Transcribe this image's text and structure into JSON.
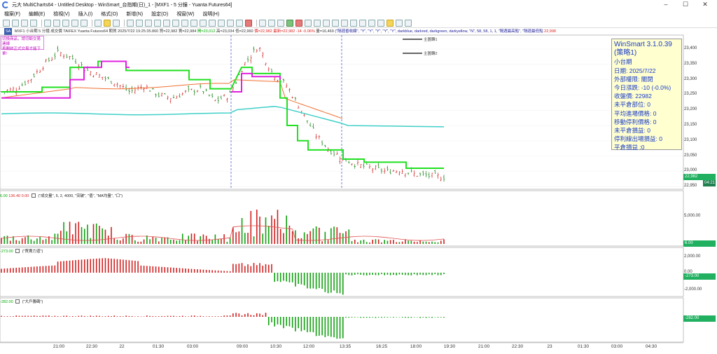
{
  "window": {
    "title": "元大 MultiCharts64 - Untitled Desktop - WinSmart_台指期(日)_1 - [MXF1 - 5 分鐘 - Yuanta Futures64]"
  },
  "menu": [
    "檔案(F)",
    "編輯(E)",
    "檢視(V)",
    "插入(I)",
    "格式(O)",
    "新增(N)",
    "設定(O)",
    "視窗(W)",
    "說明(H)"
  ],
  "infobar": {
    "badge": "SA",
    "symbol": "MXF1",
    "name": "小台期",
    "interval": "5 分鐘",
    "volume_label": "成交價",
    "exchange": "TAIFEX",
    "feed": "Yuanta Futures64",
    "period": "期貨",
    "datetime": "2025/7/22   19:25:35.860",
    "bid": "買=22,982",
    "ask": "賣=22,984",
    "open": "開=23,012",
    "high": "高=23,034",
    "low": "低=22,960",
    "last": "價=22,982",
    "close": "最新=22,982",
    "change": "-14",
    "pct": "-0.06%",
    "vol": "量=16,469",
    "indicator": "(\"隔週昏收線\", \"Y\", \"Y\", \"Y\", \"Y\", \"Y\", darkblue, darkred, darkgreen, darkyellow, \"N\", 58, 58, 1, 1, \"隔週最高點\", \"隔週最低點",
    "right_price": "22,998"
  },
  "warning": {
    "lines": [
      "切換商品，請切斷交易連線",
      "再開啟正式交易才能下單!"
    ]
  },
  "legend": [
    "主圖轉1",
    "主圖轉2"
  ],
  "infobox": {
    "title": "WinSmart 3.1.0.39",
    "strategy": "(策略1)",
    "product": "小台期",
    "date": "日期: 2025/7/22",
    "market": "外部權限: 關閉",
    "change": "今日漲跌: -10 (-0.0%)",
    "close_label": "收盤價: ",
    "close_value": "22982",
    "pos": "未平倉部位: 0",
    "avg": "平均進場價格: 0",
    "stop": "移動停利價格: 0",
    "unreal": "未平倉損益: 0",
    "stoploss": "停利線出場損益: 0",
    "realized": "平倉損益 :0"
  },
  "price_axis": [
    "23,400",
    "23,350",
    "23,300",
    "23,250",
    "23,200",
    "23,150",
    "23,100",
    "23,050",
    "23,000",
    "22,950"
  ],
  "price_tag": "22,982",
  "price_tag2": "04:21",
  "vol_panel": {
    "header_v1": "6.00",
    "header_v2": "136.40",
    "header_v3": "0.00",
    "header_text": "(\"成交量\", 5, 2, 4000, \"突破\", \"值\", \"MA均量\", \"口\")",
    "axis": [
      "5,000.00"
    ],
    "tag": "6.00"
  },
  "force_panel": {
    "header_v1": "-273.00",
    "header_text": "(\"買賣力道\")",
    "axis": [
      "2,000.00",
      "0.00",
      "-2,000.00"
    ],
    "tag": "-273.00"
  },
  "big_panel": {
    "header_v1": "-282.00",
    "header_text": "(\"大戶籌碼\")",
    "tag": "-282.00"
  },
  "x_axis": [
    "21:00",
    "22:30",
    "22",
    "01:30",
    "03:00",
    "09:00",
    "10:30",
    "12:00",
    "13:35",
    "16:25",
    "18:00",
    "19:30",
    "21:00",
    "22:30",
    "23",
    "01:30",
    "03:00",
    "04:30"
  ],
  "chart_data": [
    {
      "type": "line",
      "title": "",
      "ylim": [
        22930,
        23420
      ],
      "series": [
        {
          "name": "主圖轉1",
          "note": "green step line"
        },
        {
          "name": "主圖轉2",
          "note": "magenta step line"
        }
      ],
      "close_approx": [
        23260,
        23270,
        23300,
        23350,
        23390,
        23370,
        23330,
        23310,
        23290,
        23260,
        23280,
        23250,
        23240,
        23260,
        23270,
        23230,
        23250,
        23350,
        23410,
        23320,
        23280,
        23200,
        23120,
        23070,
        23040,
        23020,
        23010,
        23000,
        23005,
        22990,
        22985,
        22982
      ]
    },
    {
      "type": "bar",
      "title": "",
      "note": "volume histogram"
    },
    {
      "type": "bar",
      "title": "",
      "note": "buy/sell force histogram"
    },
    {
      "type": "bar",
      "title": "",
      "note": "big player histogram"
    }
  ]
}
